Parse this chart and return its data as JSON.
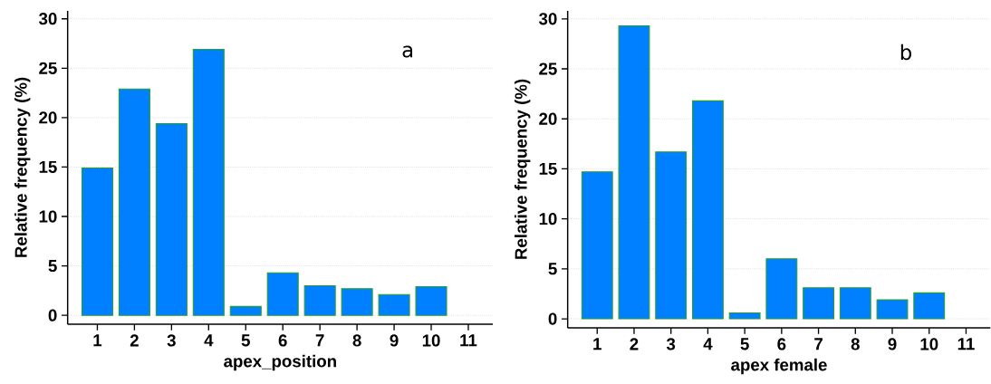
{
  "chart_data": [
    {
      "type": "bar",
      "xlabel": "apex_position",
      "ylabel": "Relative frequency (%)",
      "annotations": [
        "a"
      ],
      "categories": [
        "1",
        "2",
        "3",
        "4",
        "5",
        "6",
        "7",
        "8",
        "9",
        "10",
        "11"
      ],
      "series": [
        {
          "color": "#0080ff",
          "values": [
            14.9,
            22.9,
            19.4,
            26.9,
            0.9,
            4.3,
            3.0,
            2.7,
            2.1,
            2.9,
            null
          ]
        }
      ],
      "ylim": [
        -0.9,
        30.8
      ],
      "yticks": [
        0,
        5,
        10,
        15,
        20,
        25,
        30
      ],
      "grid": "y"
    },
    {
      "type": "bar",
      "xlabel": "apex female",
      "ylabel": "Relative frequency (%)",
      "annotations": [
        "b"
      ],
      "categories": [
        "1",
        "2",
        "3",
        "4",
        "5",
        "6",
        "7",
        "8",
        "9",
        "10",
        "11"
      ],
      "series": [
        {
          "color": "#0080ff",
          "values": [
            14.7,
            29.3,
            16.7,
            21.8,
            0.6,
            6.0,
            3.1,
            3.1,
            1.9,
            2.6,
            null
          ]
        }
      ],
      "ylim": [
        -0.9,
        30.8
      ],
      "yticks": [
        0,
        5,
        10,
        15,
        20,
        25,
        30
      ],
      "grid": "y"
    }
  ]
}
